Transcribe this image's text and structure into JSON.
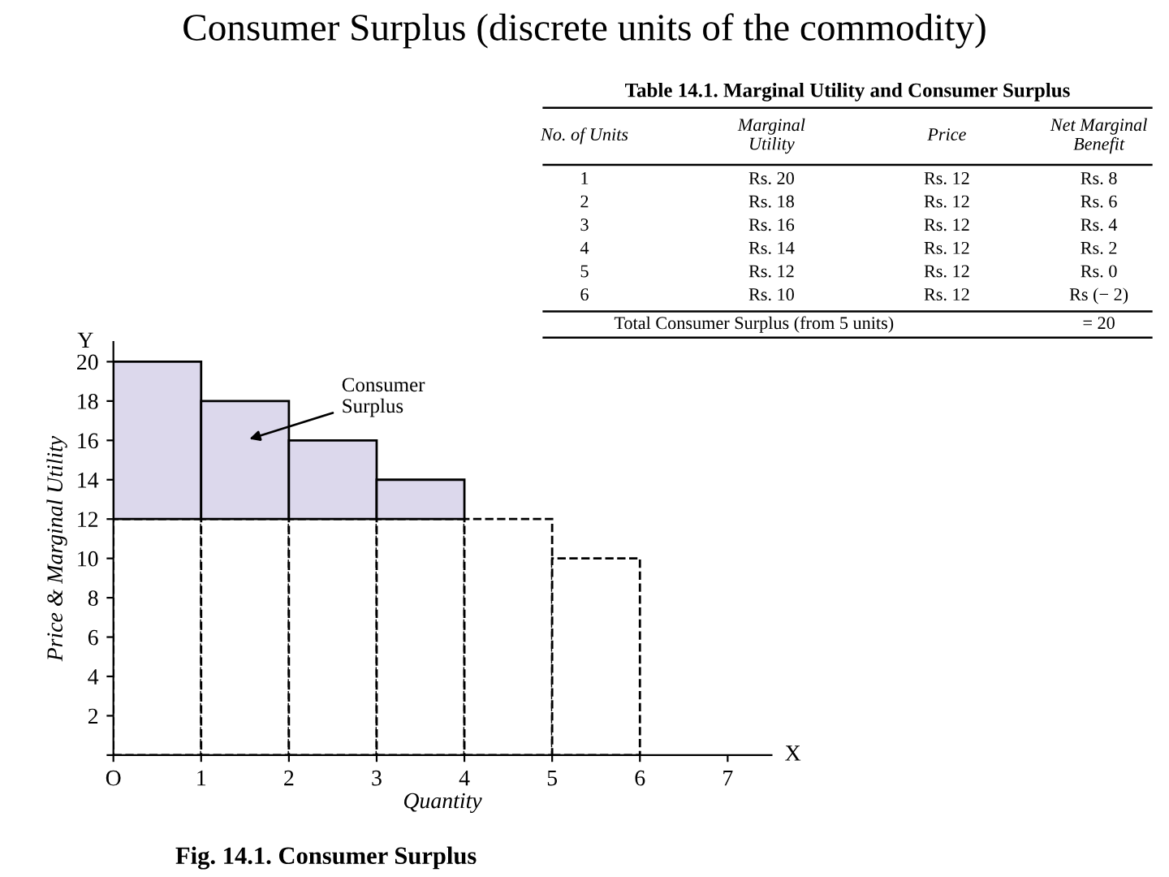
{
  "chart_data": {
    "type": "bar",
    "stacked": true,
    "title": "Consumer Surplus (discrete units of the commodity)",
    "xlabel": "Quantity",
    "ylabel": "Price & Marginal Utility",
    "x": [
      0.5,
      1.5,
      2.5,
      3.5,
      4.5,
      5.5
    ],
    "series": [
      {
        "color": "#ffffff",
        "values": [
          12,
          12,
          12,
          12,
          12,
          10
        ]
      },
      {
        "color": "#dcd8ec",
        "values": [
          8,
          6,
          4,
          2,
          0,
          0
        ]
      }
    ],
    "xlim": [
      0,
      7.5
    ],
    "xticks": [
      {
        "value": 0,
        "label": "O"
      },
      1,
      2,
      3,
      4,
      5,
      6,
      7
    ],
    "ylim": [
      0,
      21
    ],
    "yticks": [
      {
        "value": 0,
        "label": null
      },
      2,
      4,
      6,
      8,
      10,
      12,
      14,
      16,
      18,
      20
    ],
    "grid": false,
    "legend": false,
    "annotations": [
      "Consumer\nSurplus",
      "Fig. 14.1. Consumer Surplus",
      "Y",
      "X",
      "Table 14.1. Marginal Utility and Consumer Surplus",
      "No. of Units",
      "Marginal\nUtility",
      "Price",
      "Net Marginal\nBenefit",
      "1",
      "Rs. 20",
      "Rs. 12",
      "Rs. 8",
      "2",
      "Rs. 18",
      "Rs. 12",
      "Rs. 6",
      "3",
      "Rs. 16",
      "Rs. 12",
      "Rs. 4",
      "4",
      "Rs. 14",
      "Rs. 12",
      "Rs. 2",
      "5",
      "Rs. 12",
      "Rs. 12",
      "Rs. 0",
      "6",
      "Rs. 10",
      "Rs. 12",
      "Rs (− 2)",
      "Total Consumer Surplus (from 5 units)",
      "= 20"
    ]
  }
}
